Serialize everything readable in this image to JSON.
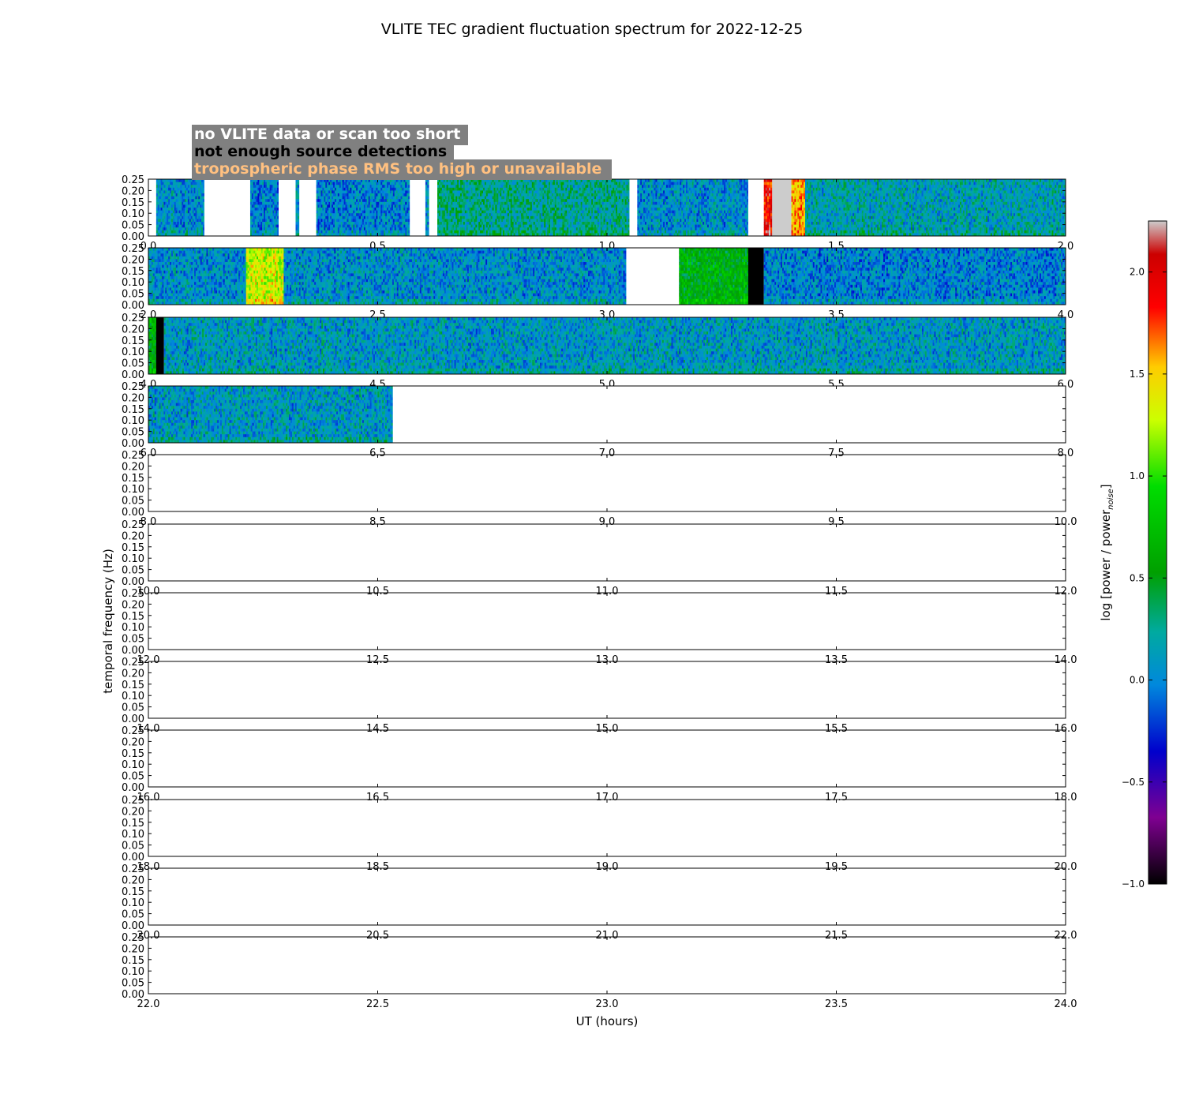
{
  "chart_data": {
    "type": "heatmap",
    "title": "VLITE TEC gradient fluctuation spectrum for 2022-12-25",
    "xlabel": "UT (hours)",
    "ylabel": "temporal frequency (Hz)",
    "colorbar": {
      "label": "log [power / power",
      "label_subscript": "noise",
      "label_close": "]",
      "range": [
        -1.0,
        2.25
      ],
      "ticks": [
        "2.0",
        "1.5",
        "1.0",
        "0.5",
        "0.0",
        "−0.5",
        "−1.0"
      ],
      "tick_values": [
        2.0,
        1.5,
        1.0,
        0.5,
        0.0,
        -0.5,
        -1.0
      ],
      "colormap": "nipy_spectral",
      "colors": [
        "#000000",
        "#7f0091",
        "#0000cc",
        "#0088dd",
        "#00aaa0",
        "#00a000",
        "#00dd00",
        "#ccff00",
        "#ffcc00",
        "#ff0000",
        "#cccccc"
      ]
    },
    "legend": {
      "placement": "top-left",
      "background": "#808080",
      "entries": [
        {
          "label": "no VLITE data or scan too short",
          "color": "#ffffff"
        },
        {
          "label": "not enough source detections",
          "color": "#000000"
        },
        {
          "label": "tropospheric phase RMS too high or unavailable",
          "color": "#ffc080"
        }
      ]
    },
    "yticks": [
      "0.00",
      "0.05",
      "0.10",
      "0.15",
      "0.20",
      "0.25"
    ],
    "ylim": [
      0,
      0.25
    ],
    "panels": [
      {
        "xlim": [
          0,
          2
        ],
        "xticks": [
          "0.0",
          "0.5",
          "1.0",
          "1.5",
          "2.0"
        ],
        "segments": [
          {
            "start": 0.0,
            "end": 0.017,
            "status": "no-data"
          },
          {
            "start": 0.017,
            "end": 0.122,
            "status": "data",
            "level": 0.05
          },
          {
            "start": 0.122,
            "end": 0.222,
            "status": "no-data"
          },
          {
            "start": 0.222,
            "end": 0.284,
            "status": "data",
            "level": 0.0
          },
          {
            "start": 0.284,
            "end": 0.321,
            "status": "no-data"
          },
          {
            "start": 0.321,
            "end": 0.329,
            "status": "data",
            "level": 0.1
          },
          {
            "start": 0.329,
            "end": 0.366,
            "status": "no-data"
          },
          {
            "start": 0.366,
            "end": 0.57,
            "status": "data",
            "level": 0.0
          },
          {
            "start": 0.57,
            "end": 0.604,
            "status": "no-data"
          },
          {
            "start": 0.604,
            "end": 0.612,
            "status": "data",
            "level": 0.0
          },
          {
            "start": 0.612,
            "end": 0.63,
            "status": "no-data"
          },
          {
            "start": 0.63,
            "end": 1.049,
            "status": "data",
            "level": 0.25
          },
          {
            "start": 1.049,
            "end": 1.066,
            "status": "no-data"
          },
          {
            "start": 1.066,
            "end": 1.308,
            "status": "data",
            "level": 0.05
          },
          {
            "start": 1.308,
            "end": 1.342,
            "status": "no-data"
          },
          {
            "start": 1.342,
            "end": 1.36,
            "status": "data",
            "level": 1.95
          },
          {
            "start": 1.36,
            "end": 1.402,
            "status": "saturated"
          },
          {
            "start": 1.402,
            "end": 1.432,
            "status": "data",
            "level": 1.6
          },
          {
            "start": 1.432,
            "end": 2.0,
            "status": "data",
            "level": 0.15
          }
        ]
      },
      {
        "xlim": [
          2,
          4
        ],
        "xticks": [
          "2.0",
          "2.5",
          "3.0",
          "3.5",
          "4.0"
        ],
        "segments": [
          {
            "start": 2.0,
            "end": 2.213,
            "status": "data",
            "level": 0.05
          },
          {
            "start": 2.213,
            "end": 2.295,
            "status": "data",
            "level": 1.3
          },
          {
            "start": 2.295,
            "end": 3.042,
            "status": "data",
            "level": 0.05
          },
          {
            "start": 3.042,
            "end": 3.157,
            "status": "no-data"
          },
          {
            "start": 3.157,
            "end": 3.308,
            "status": "data",
            "level": 0.6
          },
          {
            "start": 3.308,
            "end": 3.342,
            "status": "no-detections"
          },
          {
            "start": 3.342,
            "end": 4.0,
            "status": "data",
            "level": 0.0
          }
        ]
      },
      {
        "xlim": [
          4,
          6
        ],
        "xticks": [
          "4.0",
          "4.5",
          "5.0",
          "5.5",
          "6.0"
        ],
        "segments": [
          {
            "start": 4.0,
            "end": 4.017,
            "status": "data",
            "level": 0.6
          },
          {
            "start": 4.017,
            "end": 4.034,
            "status": "no-detections"
          },
          {
            "start": 4.034,
            "end": 6.0,
            "status": "data",
            "level": 0.1
          }
        ]
      },
      {
        "xlim": [
          6,
          8
        ],
        "xticks": [
          "6.0",
          "6.5",
          "7.0",
          "7.5",
          "8.0"
        ],
        "segments": [
          {
            "start": 6.0,
            "end": 6.533,
            "status": "data",
            "level": 0.1
          },
          {
            "start": 6.533,
            "end": 8.0,
            "status": "no-data"
          }
        ]
      },
      {
        "xlim": [
          8,
          10
        ],
        "xticks": [
          "8.0",
          "8.5",
          "9.0",
          "9.5",
          "10.0"
        ],
        "segments": []
      },
      {
        "xlim": [
          10,
          12
        ],
        "xticks": [
          "10.0",
          "10.5",
          "11.0",
          "11.5",
          "12.0"
        ],
        "segments": []
      },
      {
        "xlim": [
          12,
          14
        ],
        "xticks": [
          "12.0",
          "12.5",
          "13.0",
          "13.5",
          "14.0"
        ],
        "segments": []
      },
      {
        "xlim": [
          14,
          16
        ],
        "xticks": [
          "14.0",
          "14.5",
          "15.0",
          "15.5",
          "16.0"
        ],
        "segments": []
      },
      {
        "xlim": [
          16,
          18
        ],
        "xticks": [
          "16.0",
          "16.5",
          "17.0",
          "17.5",
          "18.0"
        ],
        "segments": []
      },
      {
        "xlim": [
          18,
          20
        ],
        "xticks": [
          "18.0",
          "18.5",
          "19.0",
          "19.5",
          "20.0"
        ],
        "segments": []
      },
      {
        "xlim": [
          20,
          22
        ],
        "xticks": [
          "20.0",
          "20.5",
          "21.0",
          "21.5",
          "22.0"
        ],
        "segments": []
      },
      {
        "xlim": [
          22,
          24
        ],
        "xticks": [
          "22.0",
          "22.5",
          "23.0",
          "23.5",
          "24.0"
        ],
        "segments": []
      }
    ]
  }
}
